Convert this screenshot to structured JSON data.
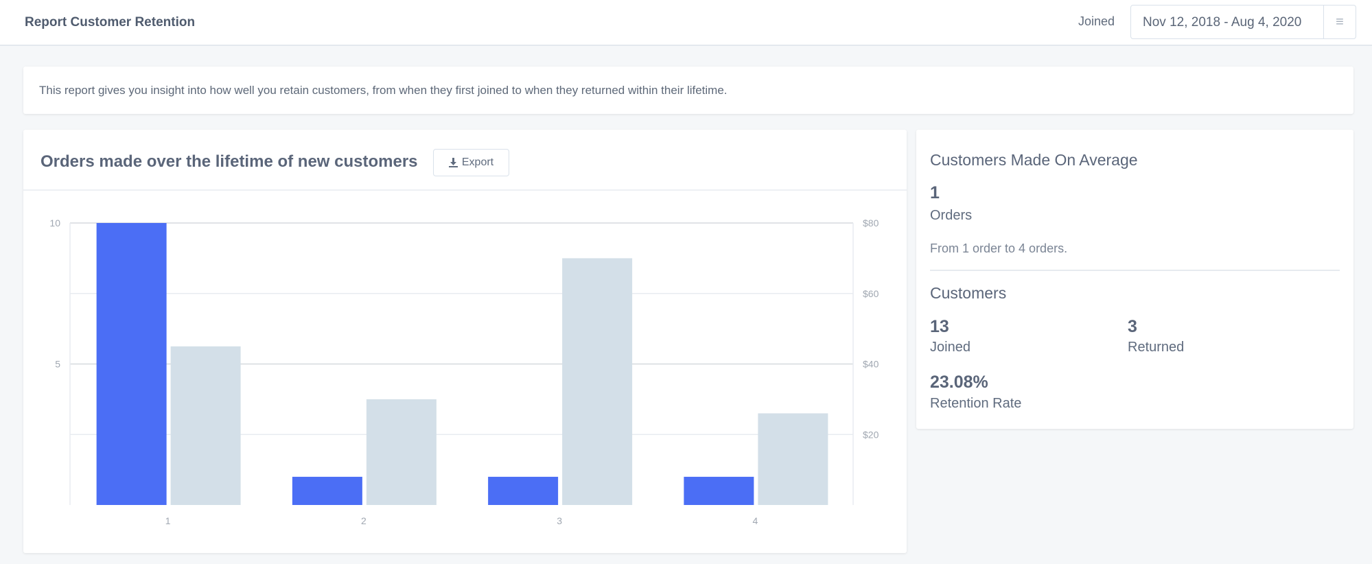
{
  "header": {
    "title": "Report Customer Retention",
    "joined_label": "Joined",
    "date_range": "Nov 12, 2018 - Aug 4, 2020",
    "menu_icon": "hamburger-icon"
  },
  "description": "This report gives you insight into how well you retain customers, from when they first joined to when they returned within their lifetime.",
  "chart_card": {
    "title": "Orders made over the lifetime of new customers",
    "export_label": "Export",
    "export_icon": "download-icon"
  },
  "chart_data": {
    "type": "bar",
    "categories": [
      "1",
      "2",
      "3",
      "4"
    ],
    "series": [
      {
        "values": [
          10,
          1,
          1,
          1
        ],
        "axis": "left",
        "color": "#4b6ef5"
      },
      {
        "values": [
          45,
          30,
          70,
          26
        ],
        "axis": "right",
        "color": "#d3dfe8"
      }
    ],
    "left_axis": {
      "ylim": [
        0,
        10
      ],
      "ticks": [
        "10",
        "5"
      ]
    },
    "right_axis": {
      "ylim": [
        0,
        80
      ],
      "ticks": [
        "$80",
        "$60",
        "$40",
        "$20"
      ]
    },
    "grid": true
  },
  "summary": {
    "avg_title": "Customers Made On Average",
    "avg_orders": "1",
    "orders_label": "Orders",
    "range_text": "From 1 order to 4 orders.",
    "customers_title": "Customers",
    "joined_value": "13",
    "joined_label": "Joined",
    "returned_value": "3",
    "returned_label": "Returned",
    "retention_value": "23.08%",
    "retention_label": "Retention Rate"
  }
}
